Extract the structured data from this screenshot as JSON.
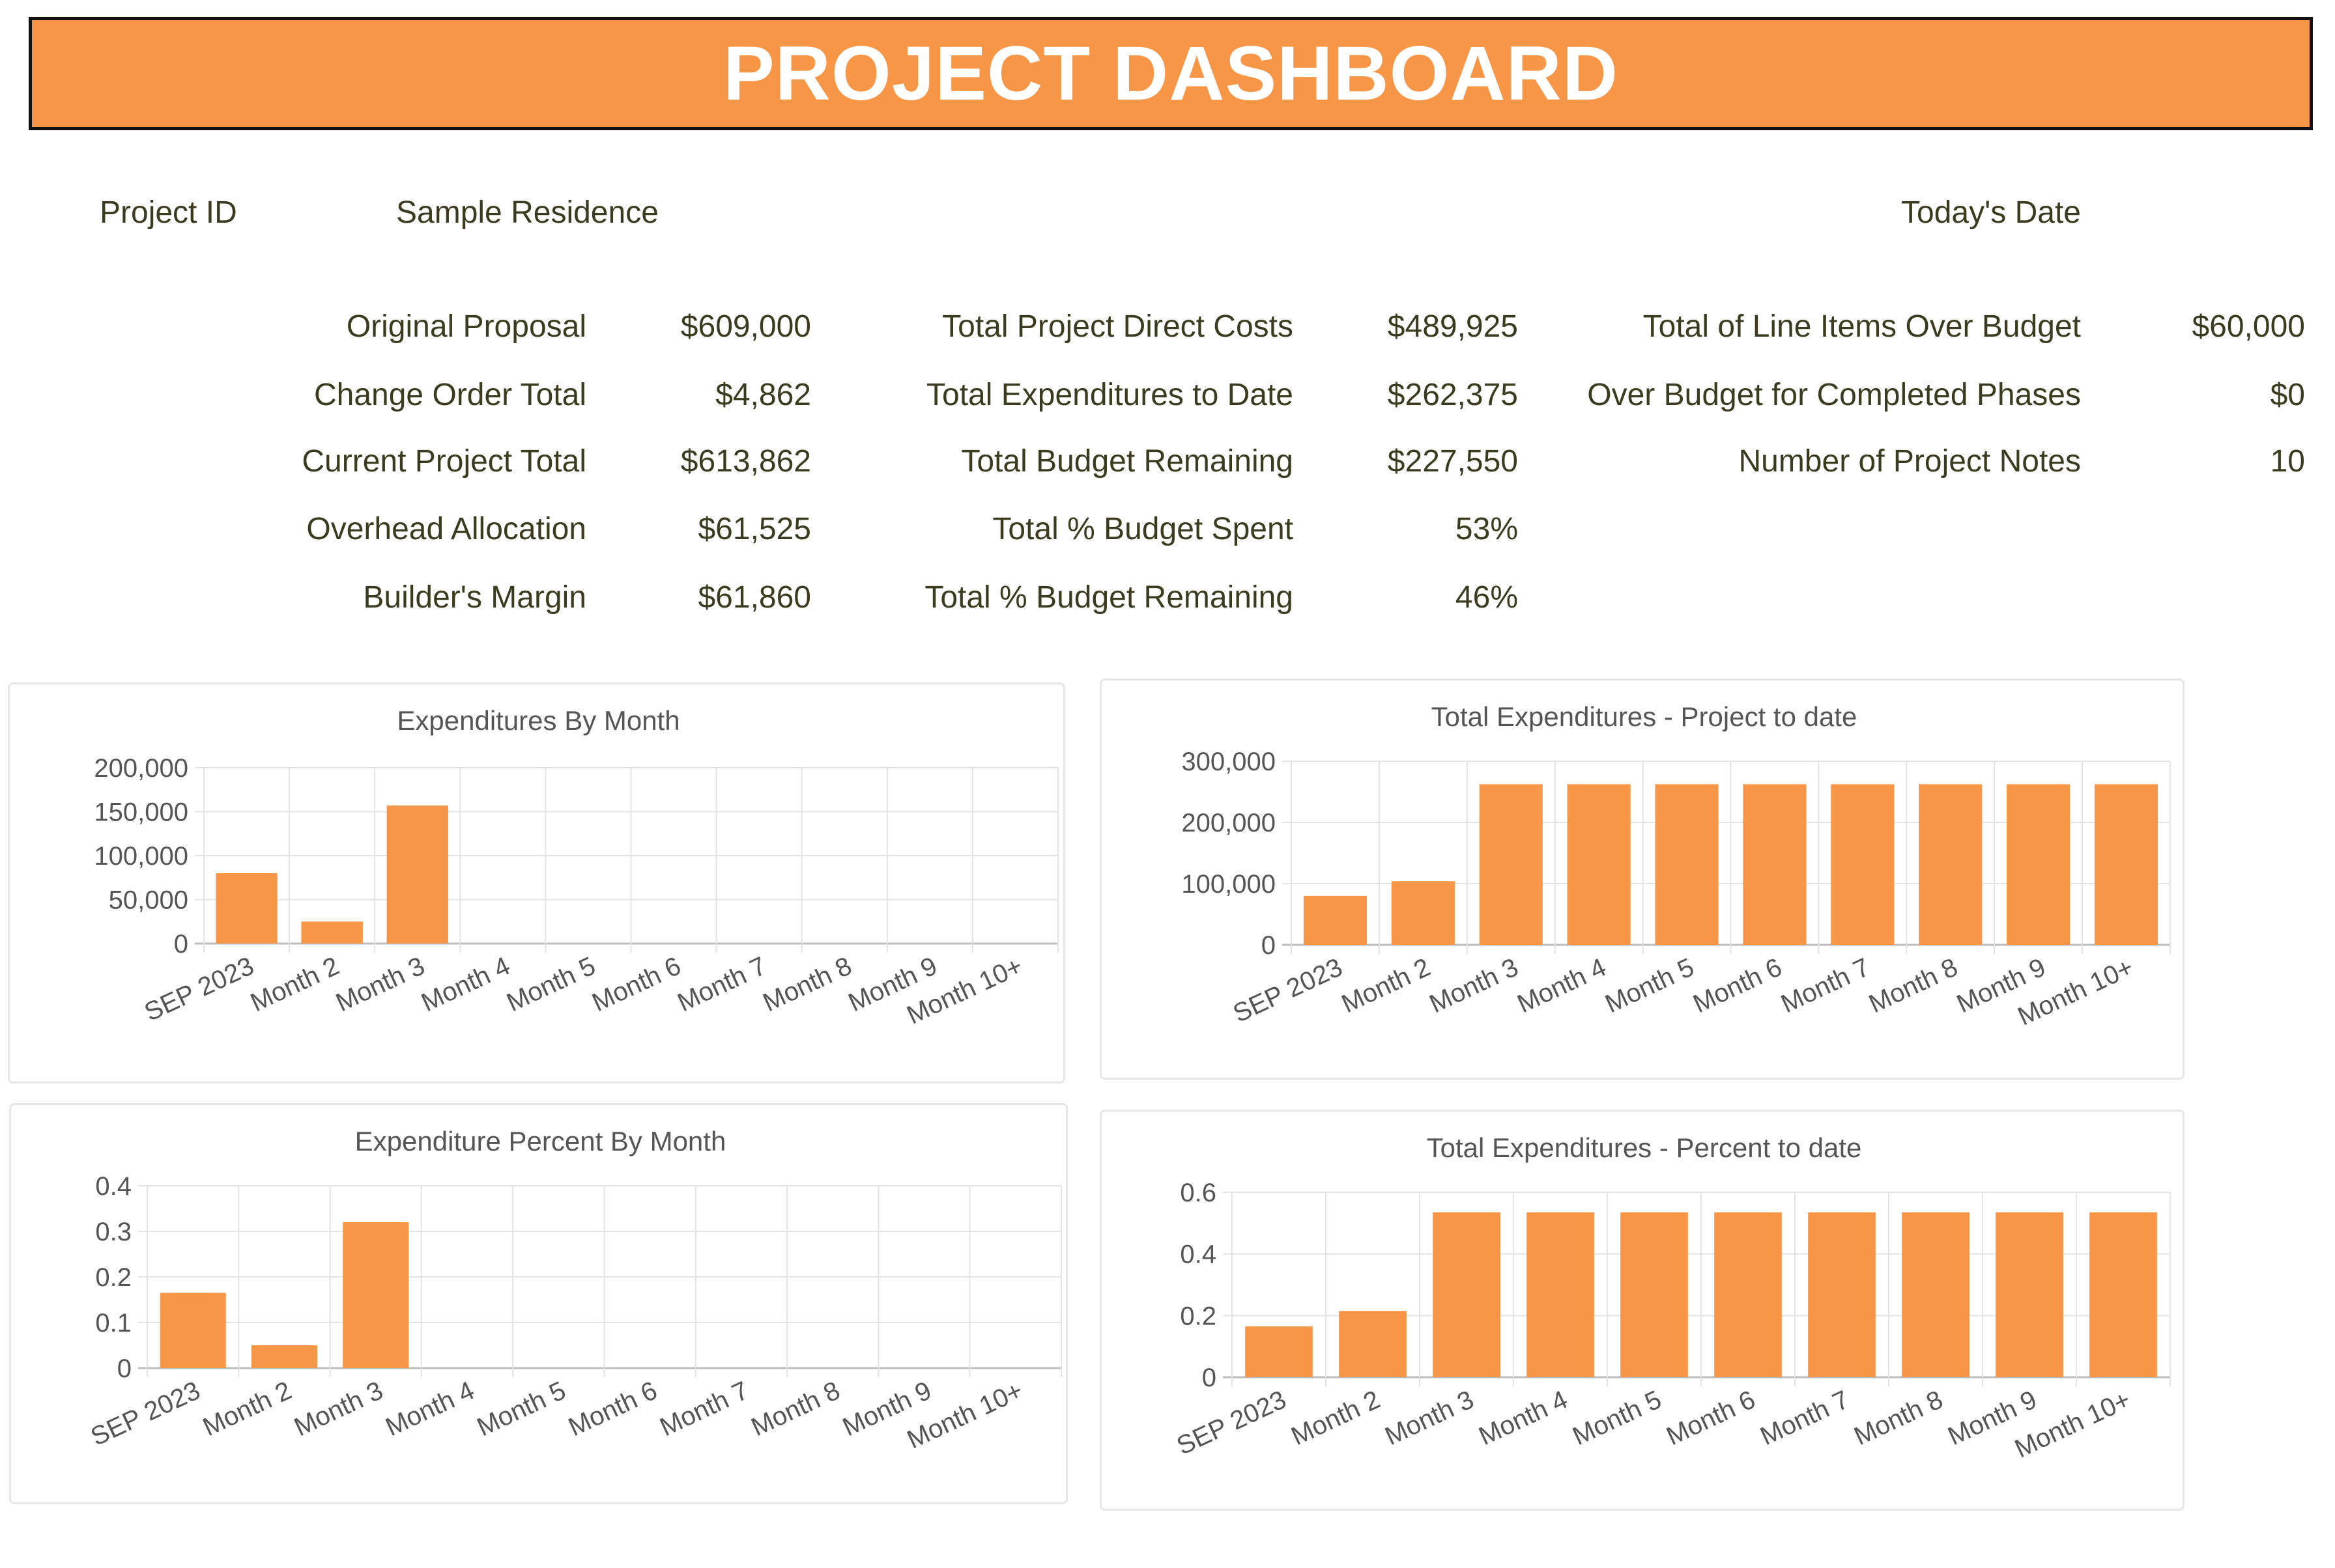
{
  "header": {
    "title": "PROJECT DASHBOARD"
  },
  "project": {
    "id_label": "Project ID",
    "name": "Sample Residence",
    "date_label": "Today's Date"
  },
  "summary": {
    "col1": [
      {
        "label": "Original Proposal",
        "value": "$609,000"
      },
      {
        "label": "Change Order Total",
        "value": "$4,862"
      },
      {
        "label": "Current Project Total",
        "value": "$613,862"
      },
      {
        "label": "Overhead Allocation",
        "value": "$61,525"
      },
      {
        "label": "Builder's Margin",
        "value": "$61,860"
      }
    ],
    "col2": [
      {
        "label": "Total Project Direct Costs",
        "value": "$489,925"
      },
      {
        "label": "Total Expenditures to Date",
        "value": "$262,375"
      },
      {
        "label": "Total Budget Remaining",
        "value": "$227,550"
      },
      {
        "label": "Total % Budget Spent",
        "value": "53%"
      },
      {
        "label": "Total % Budget Remaining",
        "value": "46%"
      }
    ],
    "col3": [
      {
        "label": "Total of Line Items Over Budget",
        "value": "$60,000"
      },
      {
        "label": "Over Budget for Completed Phases",
        "value": "$0"
      },
      {
        "label": "Number of Project Notes",
        "value": "10"
      }
    ]
  },
  "colors": {
    "accent": "#F79646",
    "bar": "#F79646",
    "text": "#3b3b1f"
  },
  "chart_data": [
    {
      "type": "bar",
      "title": "Expenditures By Month",
      "categories": [
        "SEP 2023",
        "Month 2",
        "Month 3",
        "Month 4",
        "Month 5",
        "Month 6",
        "Month 7",
        "Month 8",
        "Month 9",
        "Month 10+"
      ],
      "values": [
        80000,
        25000,
        157000,
        0,
        0,
        0,
        0,
        0,
        0,
        0
      ],
      "yticks": [
        "0",
        "50,000",
        "100,000",
        "150,000",
        "200,000"
      ],
      "ylim": [
        0,
        200000
      ],
      "grid": true,
      "legend": "none"
    },
    {
      "type": "bar",
      "title": "Total Expenditures - Project to date",
      "categories": [
        "SEP 2023",
        "Month 2",
        "Month 3",
        "Month 4",
        "Month 5",
        "Month 6",
        "Month 7",
        "Month 8",
        "Month 9",
        "Month 10+"
      ],
      "values": [
        80000,
        104000,
        262375,
        262375,
        262375,
        262375,
        262375,
        262375,
        262375,
        262375
      ],
      "yticks": [
        "0",
        "100,000",
        "200,000",
        "300,000"
      ],
      "ylim": [
        0,
        300000
      ],
      "grid": true,
      "legend": "none"
    },
    {
      "type": "bar",
      "title": "Expenditure Percent By Month",
      "categories": [
        "SEP 2023",
        "Month 2",
        "Month 3",
        "Month 4",
        "Month 5",
        "Month 6",
        "Month 7",
        "Month 8",
        "Month 9",
        "Month 10+"
      ],
      "values": [
        0.165,
        0.05,
        0.32,
        0,
        0,
        0,
        0,
        0,
        0,
        0
      ],
      "yticks": [
        "0",
        "0.1",
        "0.2",
        "0.3",
        "0.4"
      ],
      "ylim": [
        0,
        0.4
      ],
      "grid": true,
      "legend": "none"
    },
    {
      "type": "bar",
      "title": "Total Expenditures - Percent to date",
      "categories": [
        "SEP 2023",
        "Month 2",
        "Month 3",
        "Month 4",
        "Month 5",
        "Month 6",
        "Month 7",
        "Month 8",
        "Month 9",
        "Month 10+"
      ],
      "values": [
        0.165,
        0.215,
        0.535,
        0.535,
        0.535,
        0.535,
        0.535,
        0.535,
        0.535,
        0.535
      ],
      "yticks": [
        "0",
        "0.2",
        "0.4",
        "0.6"
      ],
      "ylim": [
        0,
        0.6
      ],
      "grid": true,
      "legend": "none"
    }
  ]
}
